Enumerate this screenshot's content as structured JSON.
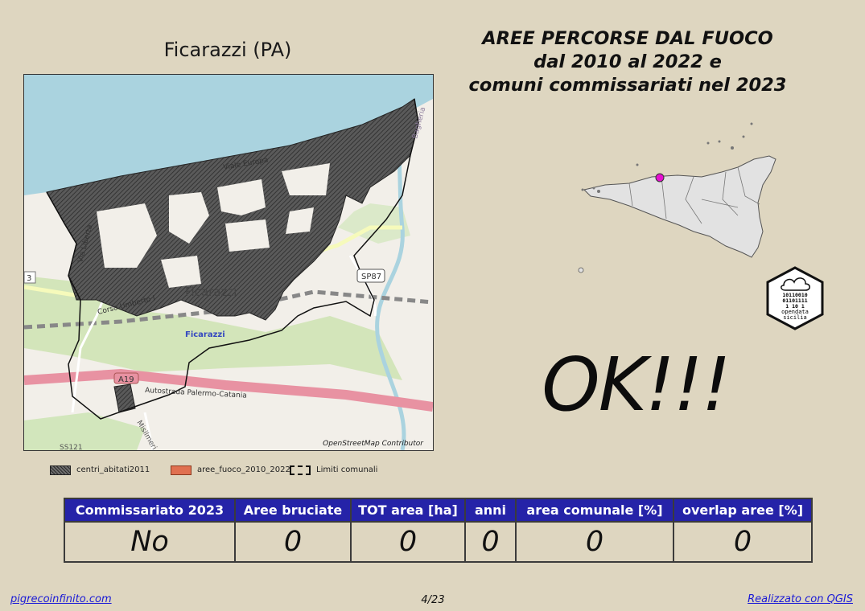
{
  "map": {
    "title": "Ficarazzi (PA)",
    "attribution": "OpenStreetMap Contributor",
    "labels": {
      "town": "Ficarazzi",
      "station": "Ficarazzi",
      "viale_europa": "Viale Europa",
      "corso_umberto": "Corso Umberto I",
      "via_liberta": "Via Libertà",
      "sp87": "SP87",
      "a19": "A19",
      "autostrada": "Autostrada Palermo-Catania",
      "bagheria": "Bagheria",
      "misilmeri": "Misilmeri",
      "ss121": "SS121",
      "road_left": "3"
    }
  },
  "heading": {
    "line1": "AREE PERCORSE DAL FUOCO",
    "line2": "dal 2010 al 2022 e",
    "line3": "comuni commissariati nel 2023"
  },
  "status": "OK!!!",
  "legend": [
    {
      "label": "centri_abitati2011",
      "color": "#6e6e6e"
    },
    {
      "label": "aree_fuoco_2010_2022",
      "color": "#e07050"
    },
    {
      "label": "Limiti comunali",
      "color": "none"
    }
  ],
  "logo": {
    "bits1": "10110010",
    "bits2": "01101111",
    "bits3": "1   10 1",
    "name1": "opendata",
    "name2": "sicilia"
  },
  "table": {
    "headers": [
      "Commissariato 2023",
      "Aree bruciate",
      "TOT area [ha]",
      "anni",
      "area comunale [%]",
      "overlap aree [%]"
    ],
    "values": [
      "No",
      "0",
      "0",
      "0",
      "0",
      "0"
    ]
  },
  "footer": {
    "left": "pigrecoinfinito.com",
    "page": "4/23",
    "right": "Realizzato con QGIS"
  },
  "colors": {
    "background": "#ded6c0",
    "sea": "#aad3df",
    "header": "#2523a8",
    "marker": "#e60fd0"
  }
}
